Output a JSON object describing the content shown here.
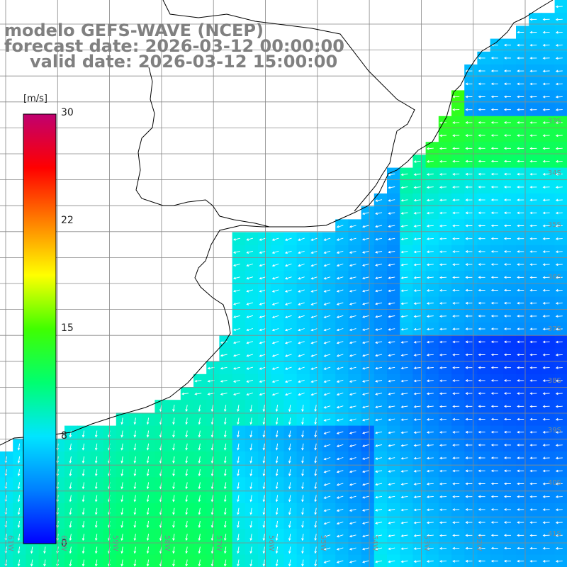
{
  "titles": {
    "line1": "modelo GEFS-WAVE (NCEP)",
    "line2": "forecast date: 2026-03-12 00:00:00",
    "line3": "valid date: 2026-03-12 15:00:00"
  },
  "colorbar": {
    "unit": "[m/s]",
    "ticks": [
      "30",
      "22",
      "15",
      "8",
      "0"
    ],
    "range": [
      0,
      30
    ],
    "colors": [
      "#0000ff",
      "#0080ff",
      "#00e5ff",
      "#00ff70",
      "#40ff00",
      "#ffff00",
      "#ff8000",
      "#ff0000",
      "#c00070"
    ]
  },
  "lat_labels": [
    "33S",
    "34S",
    "35S",
    "36S",
    "37S",
    "38S",
    "39S",
    "40S",
    "41S"
  ],
  "lon_labels": [
    "61W",
    "60W",
    "59W",
    "58W",
    "57W",
    "56W",
    "55W",
    "54W",
    "53W",
    "52W"
  ],
  "colors": {
    "land": "#ffffff",
    "grid": "#888888",
    "coast": "#000000",
    "arrow": "#ffffff"
  }
}
